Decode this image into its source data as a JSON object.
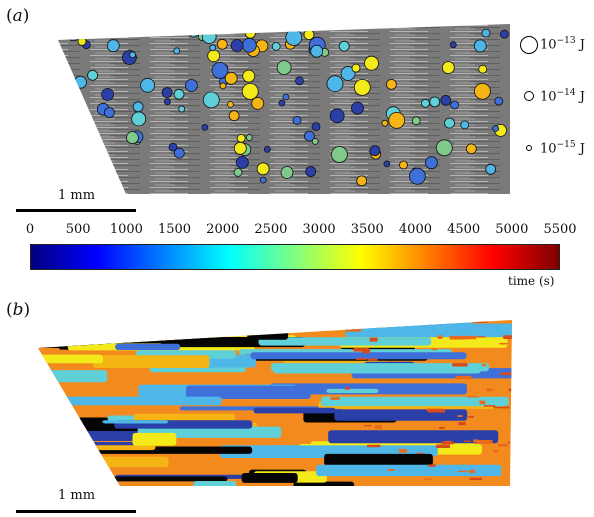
{
  "figure": {
    "panel_a": {
      "label": "a"
    },
    "panel_b": {
      "label": "b"
    },
    "scale_bar_a": {
      "text": "1 mm"
    },
    "scale_bar_b": {
      "text": "1 mm"
    }
  },
  "energy_legend": [
    {
      "mantissa": "10",
      "exponent": "−13",
      "unit": "J",
      "energy_joules": 1e-13
    },
    {
      "mantissa": "10",
      "exponent": "−14",
      "unit": "J",
      "energy_joules": 1e-14
    },
    {
      "mantissa": "10",
      "exponent": "−15",
      "unit": "J",
      "energy_joules": 1e-15
    }
  ],
  "colorbar": {
    "ticks": [
      "0",
      "500",
      "1000",
      "1500",
      "2000",
      "2500",
      "3000",
      "3500",
      "4000",
      "4500",
      "5000",
      "5500"
    ],
    "range": [
      0,
      5500
    ],
    "label": "time (s)",
    "colormap": [
      "#00007f",
      "#0000ff",
      "#007fff",
      "#00ffff",
      "#7fff7f",
      "#ffff00",
      "#ff7f00",
      "#ff0000",
      "#7f0000"
    ]
  },
  "colors": {
    "sample_gray": "#8a8a8a",
    "fracture_black": "#050505"
  }
}
